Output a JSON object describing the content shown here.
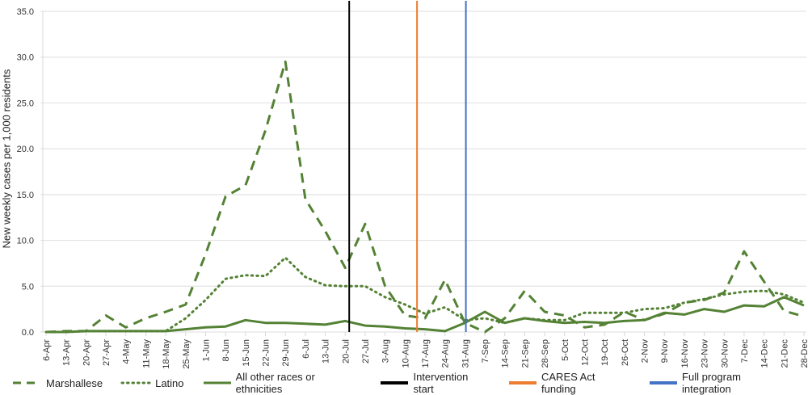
{
  "chart_data": {
    "type": "line",
    "title": "",
    "xlabel": "",
    "ylabel": "New weekly cases per 1,000 residents",
    "ylim": [
      0,
      35
    ],
    "yticks": [
      "0.0",
      "5.0",
      "10.0",
      "15.0",
      "20.0",
      "25.0",
      "30.0",
      "35.0"
    ],
    "grid": true,
    "legend_position": "bottom",
    "categories": [
      "6-Apr",
      "13-Apr",
      "20-Apr",
      "27-Apr",
      "4-May",
      "11-May",
      "18-May",
      "25-May",
      "1-Jun",
      "8-Jun",
      "15-Jun",
      "22-Jun",
      "29-Jun",
      "6-Jul",
      "13-Jul",
      "20-Jul",
      "27-Jul",
      "3-Aug",
      "10-Aug",
      "17-Aug",
      "24-Aug",
      "31-Aug",
      "7-Sep",
      "14-Sep",
      "21-Sep",
      "28-Sep",
      "5-Oct",
      "12-Oct",
      "19-Oct",
      "26-Oct",
      "2-Nov",
      "9-Nov",
      "16-Nov",
      "23-Nov",
      "30-Nov",
      "7-Dec",
      "14-Dec",
      "21-Dec",
      "28-Dec"
    ],
    "series": [
      {
        "name": "Marshallese",
        "style": "dashed",
        "color": "#548235",
        "values": [
          0.0,
          0.1,
          0.1,
          1.8,
          0.5,
          1.5,
          2.2,
          3.0,
          8.5,
          14.8,
          16.0,
          22.0,
          29.5,
          14.5,
          11.0,
          7.0,
          11.8,
          5.0,
          1.8,
          1.5,
          5.7,
          1.0,
          0.0,
          1.5,
          4.5,
          2.2,
          1.8,
          0.5,
          0.8,
          2.2,
          1.3,
          2.0,
          3.2,
          3.5,
          4.3,
          8.8,
          5.5,
          2.3,
          1.7
        ]
      },
      {
        "name": "Latino",
        "style": "dotted",
        "color": "#548235",
        "values": [
          0.0,
          0.0,
          0.1,
          0.1,
          0.1,
          0.1,
          0.1,
          1.5,
          3.5,
          5.8,
          6.2,
          6.1,
          8.1,
          6.0,
          5.1,
          5.0,
          5.0,
          3.8,
          3.0,
          2.0,
          2.7,
          1.3,
          1.5,
          1.0,
          1.5,
          1.3,
          1.3,
          2.1,
          2.1,
          2.1,
          2.5,
          2.6,
          3.2,
          3.6,
          4.1,
          4.4,
          4.5,
          4.1,
          3.2
        ]
      },
      {
        "name": "All other races or ethnicities",
        "style": "solid",
        "color": "#548235",
        "values": [
          0.0,
          0.0,
          0.1,
          0.1,
          0.1,
          0.1,
          0.1,
          0.3,
          0.5,
          0.6,
          1.3,
          1.0,
          1.0,
          0.9,
          0.8,
          1.2,
          0.7,
          0.6,
          0.4,
          0.3,
          0.1,
          1.0,
          2.2,
          1.0,
          1.5,
          1.2,
          1.0,
          1.1,
          1.0,
          1.2,
          1.3,
          2.1,
          1.9,
          2.5,
          2.2,
          2.9,
          2.8,
          3.8,
          2.9
        ]
      }
    ],
    "vertical_markers": [
      {
        "name": "Intervention start",
        "color": "#000000",
        "position_after": "20-Jul",
        "offset": 0.2
      },
      {
        "name": "CARES Act funding",
        "color": "#ED7D31",
        "position_after": "10-Aug",
        "offset": 0.6
      },
      {
        "name": "Full program integration",
        "color": "#4472C4",
        "position_after": "31-Aug",
        "offset": 0.05
      }
    ]
  },
  "legend": {
    "items": [
      {
        "label": "Marshallese",
        "style": "dashed",
        "color": "#548235"
      },
      {
        "label": "Latino",
        "style": "dotted",
        "color": "#548235"
      },
      {
        "label": "All other races or ethnicities",
        "style": "solid",
        "color": "#548235"
      },
      {
        "label": "Intervention start",
        "style": "solid",
        "color": "#000000"
      },
      {
        "label": "CARES Act funding",
        "style": "solid",
        "color": "#ED7D31"
      },
      {
        "label": "Full program integration",
        "style": "solid",
        "color": "#4472C4"
      }
    ]
  }
}
